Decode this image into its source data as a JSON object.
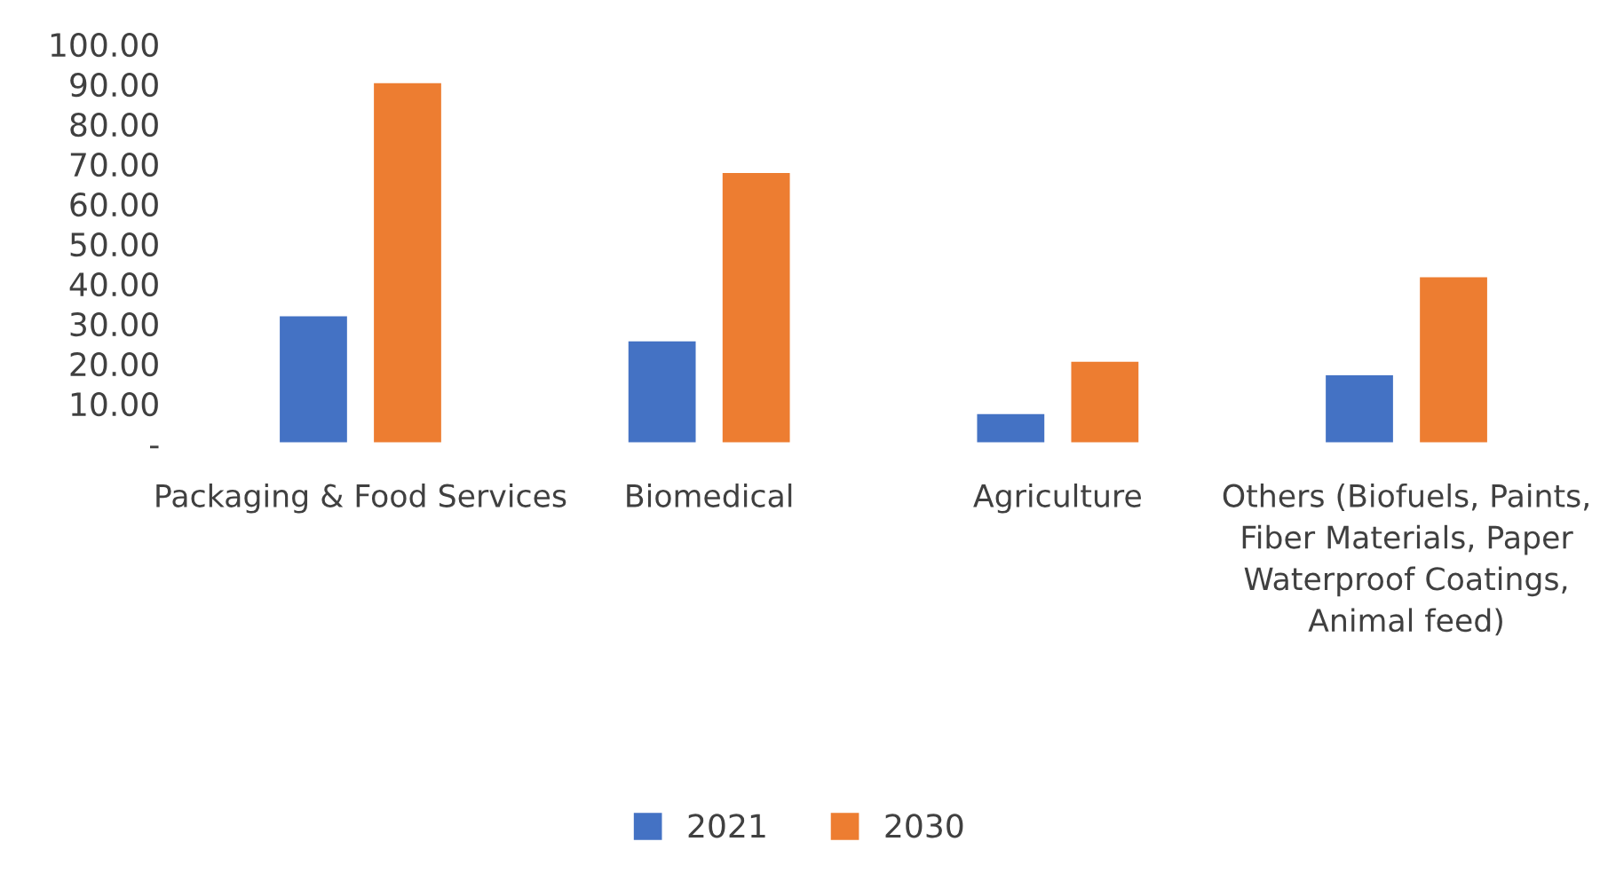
{
  "chart_data": {
    "type": "bar",
    "categories": [
      "Packaging & Food Services",
      "Biomedical",
      "Agriculture",
      "Others (Biofuels, Paints, Fiber Materials, Paper Waterproof Coatings, Animal feed)"
    ],
    "series": [
      {
        "name": "2021",
        "color": "#4472c4",
        "values": [
          32.2,
          25.9,
          7.7,
          17.4
        ]
      },
      {
        "name": "2030",
        "color": "#ed7d31",
        "values": [
          90.6,
          68.1,
          20.8,
          42.0
        ]
      }
    ],
    "ylim": [
      0,
      100
    ],
    "yticks": [
      {
        "value": 0,
        "label": "-"
      },
      {
        "value": 10,
        "label": "10.00"
      },
      {
        "value": 20,
        "label": "20.00"
      },
      {
        "value": 30,
        "label": "30.00"
      },
      {
        "value": 40,
        "label": "40.00"
      },
      {
        "value": 50,
        "label": "50.00"
      },
      {
        "value": 60,
        "label": "60.00"
      },
      {
        "value": 70,
        "label": "70.00"
      },
      {
        "value": 80,
        "label": "80.00"
      },
      {
        "value": 90,
        "label": "90.00"
      },
      {
        "value": 100,
        "label": "100.00"
      }
    ],
    "grid": false,
    "legend": "bottom"
  }
}
